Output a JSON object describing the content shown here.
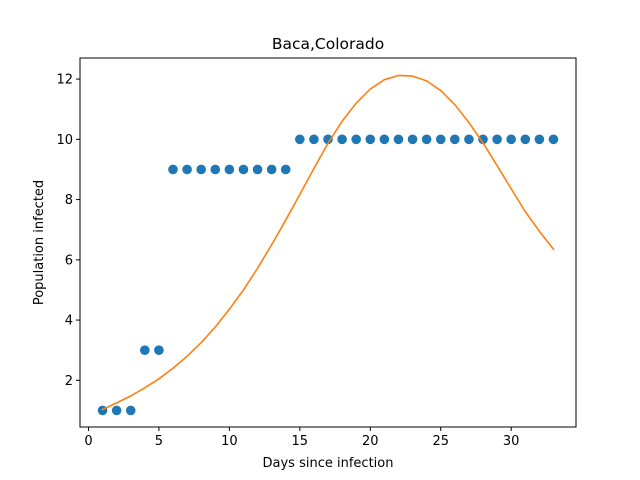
{
  "chart_data": {
    "type": "scatter",
    "title": "Baca,Colorado",
    "xlabel": "Days since infection",
    "ylabel": "Population infected",
    "xlim": [
      -0.6,
      34.6
    ],
    "ylim": [
      0.45,
      12.7
    ],
    "xticks": [
      0,
      5,
      10,
      15,
      20,
      25,
      30
    ],
    "yticks": [
      2,
      4,
      6,
      8,
      10,
      12
    ],
    "grid": false,
    "series": [
      {
        "kind": "scatter",
        "color": "#1f77b4",
        "x": [
          1,
          2,
          3,
          4,
          5,
          6,
          7,
          8,
          9,
          10,
          11,
          12,
          13,
          14,
          15,
          16,
          17,
          18,
          19,
          20,
          21,
          22,
          23,
          24,
          25,
          26,
          27,
          28,
          29,
          30,
          31,
          32,
          33
        ],
        "y": [
          1,
          1,
          1,
          3,
          3,
          9,
          9,
          9,
          9,
          9,
          9,
          9,
          9,
          9,
          10,
          10,
          10,
          10,
          10,
          10,
          10,
          10,
          10,
          10,
          10,
          10,
          10,
          10,
          10,
          10,
          10,
          10,
          10
        ]
      },
      {
        "kind": "line",
        "color": "#ff7f0e",
        "x": [
          1,
          2,
          3,
          4,
          5,
          6,
          7,
          8,
          9,
          10,
          11,
          12,
          13,
          14,
          15,
          16,
          17,
          18,
          19,
          20,
          21,
          22,
          23,
          24,
          25,
          26,
          27,
          28,
          29,
          30,
          31,
          32,
          33
        ],
        "y": [
          1.03,
          1.25,
          1.48,
          1.75,
          2.05,
          2.4,
          2.8,
          3.25,
          3.77,
          4.36,
          5.0,
          5.72,
          6.5,
          7.32,
          8.17,
          9.03,
          9.87,
          10.6,
          11.2,
          11.67,
          11.98,
          12.12,
          12.1,
          11.94,
          11.62,
          11.15,
          10.56,
          9.88,
          9.13,
          8.36,
          7.6,
          6.95,
          6.35
        ]
      }
    ]
  }
}
